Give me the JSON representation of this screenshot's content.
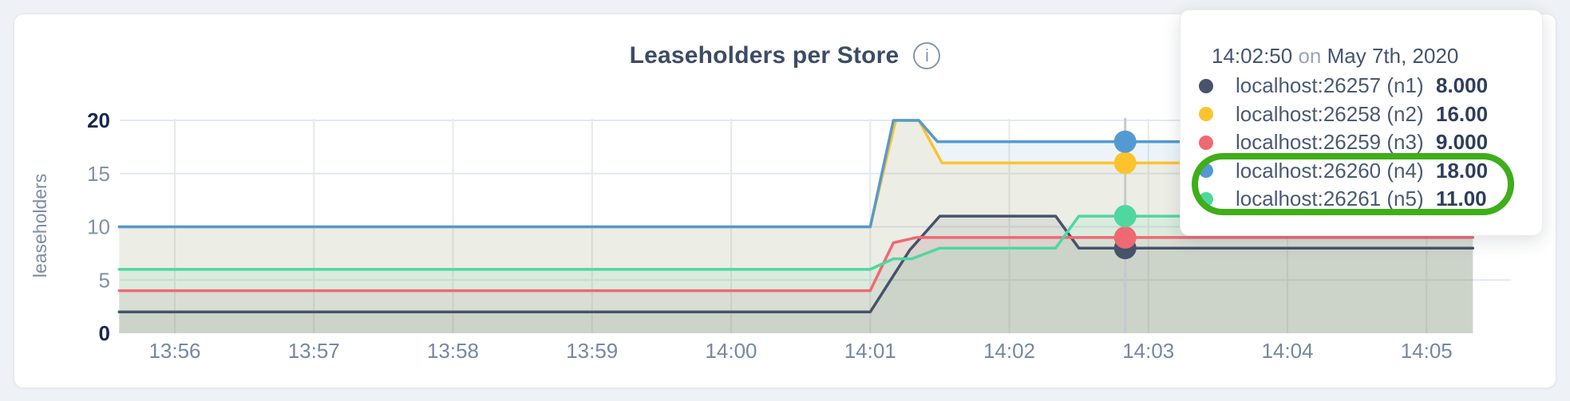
{
  "theme": {
    "page_bg": "#eef1f5",
    "card_bg": "#ffffff",
    "title_color": "#3c4b66",
    "axis_tick_color": "#7389a4",
    "axis_tick_bold_color": "#16294d",
    "grid_vertical_color": "#e7e9e9",
    "grid_horizontal_color": "#e3e8f0",
    "hover_line_color": "#c6c9cc",
    "annotation_ring_color": "#3fae19"
  },
  "header": {
    "title": "Leaseholders per Store",
    "info_glyph": "i"
  },
  "tooltip": {
    "time": "14:02:50",
    "preposition": "on",
    "date": "May 7th, 2020",
    "rows": [
      {
        "label": "localhost:26257 (n1)",
        "value": "8.000",
        "color": "#46536b",
        "highlighted": false
      },
      {
        "label": "localhost:26258 (n2)",
        "value": "16.00",
        "color": "#fcc32c",
        "highlighted": false
      },
      {
        "label": "localhost:26259 (n3)",
        "value": "9.000",
        "color": "#ef6972",
        "highlighted": false
      },
      {
        "label": "localhost:26260 (n4)",
        "value": "18.00",
        "color": "#549ad2",
        "highlighted": true
      },
      {
        "label": "localhost:26261 (n5)",
        "value": "11.00",
        "color": "#4fd7a0",
        "highlighted": true
      }
    ]
  },
  "chart_data": {
    "type": "area",
    "title": "Leaseholders per Store",
    "xlabel": "",
    "ylabel": "leaseholders",
    "ylim": [
      0,
      20
    ],
    "y_ticks": [
      0,
      5,
      10,
      15,
      20
    ],
    "x_tick_labels": [
      "13:56",
      "13:57",
      "13:58",
      "13:59",
      "14:00",
      "14:01",
      "14:02",
      "14:03",
      "14:04",
      "14:05"
    ],
    "x_unit": "seconds since 13:56:00",
    "x_range_seconds": [
      -24,
      560
    ],
    "grid": true,
    "legend_position": "hover-tooltip",
    "hover": {
      "time_label": "14:02:50",
      "x_seconds": 410
    },
    "series": [
      {
        "name": "localhost:26257 (n1)",
        "color": "#46536b",
        "hover_value": 8,
        "points": [
          [
            -24,
            2
          ],
          [
            300,
            2
          ],
          [
            317,
            7.8
          ],
          [
            330,
            11
          ],
          [
            380,
            11
          ],
          [
            390,
            8
          ],
          [
            560,
            8
          ]
        ]
      },
      {
        "name": "localhost:26258 (n2)",
        "color": "#fcc32c",
        "hover_value": 16,
        "points": [
          [
            -24,
            10
          ],
          [
            300,
            10
          ],
          [
            311,
            20
          ],
          [
            321,
            20
          ],
          [
            331,
            16
          ],
          [
            560,
            16
          ]
        ]
      },
      {
        "name": "localhost:26259 (n3)",
        "color": "#ef6972",
        "hover_value": 9,
        "points": [
          [
            -24,
            4
          ],
          [
            300,
            4
          ],
          [
            310,
            8.5
          ],
          [
            320,
            9
          ],
          [
            560,
            9
          ]
        ]
      },
      {
        "name": "localhost:26260 (n4)",
        "color": "#549ad2",
        "hover_value": 18,
        "points": [
          [
            -24,
            10
          ],
          [
            300,
            10
          ],
          [
            310,
            20
          ],
          [
            321,
            20
          ],
          [
            329,
            18
          ],
          [
            560,
            18
          ]
        ]
      },
      {
        "name": "localhost:26261 (n5)",
        "color": "#4fd7a0",
        "hover_value": 11,
        "points": [
          [
            -24,
            6
          ],
          [
            300,
            6
          ],
          [
            310,
            7
          ],
          [
            318,
            7
          ],
          [
            330,
            8
          ],
          [
            380,
            8
          ],
          [
            390,
            11
          ],
          [
            560,
            11
          ]
        ]
      }
    ]
  }
}
